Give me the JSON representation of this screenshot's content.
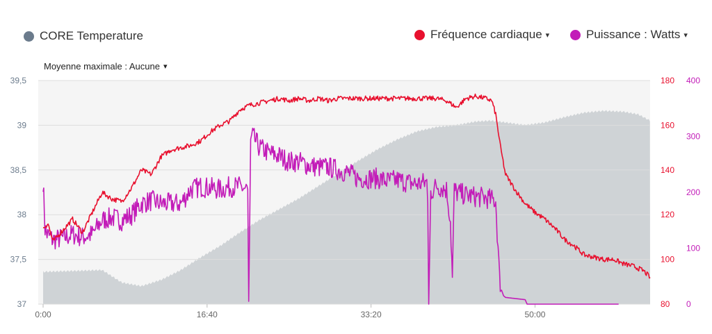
{
  "legend": {
    "core": {
      "label": "CORE Temperature",
      "color": "#6b7b8c"
    },
    "heart_rate": {
      "label": "Fréquence cardiaque",
      "color": "#e8102e"
    },
    "power": {
      "label": "Puissance : Watts",
      "color": "#c21cb8"
    },
    "caret": "▾"
  },
  "moving_average": {
    "label": "Moyenne maximale : Aucune"
  },
  "colors": {
    "core_fill": "#cfd3d6",
    "plot_bg": "#f5f5f5",
    "grid": "#dddddd",
    "left_axis_text": "#6b7b8c",
    "hr_axis_text": "#e8102e",
    "power_axis_text": "#c21cb8"
  },
  "chart_data": {
    "type": "line",
    "x_unit": "minutes",
    "x_range": [
      0,
      61.7
    ],
    "x_ticks": [
      {
        "value": 0,
        "label": "0:00"
      },
      {
        "value": 16.667,
        "label": "16:40"
      },
      {
        "value": 33.333,
        "label": "33:20"
      },
      {
        "value": 50,
        "label": "50:00"
      }
    ],
    "axes": {
      "temperature": {
        "range": [
          37,
          39.5
        ],
        "ticks": [
          "37",
          "37,5",
          "38",
          "38,5",
          "39",
          "39,5"
        ]
      },
      "heart_rate": {
        "range": [
          80,
          180
        ],
        "ticks": [
          "80",
          "100",
          "120",
          "140",
          "160",
          "180"
        ]
      },
      "power": {
        "range": [
          0,
          400
        ],
        "ticks": [
          "0",
          "100",
          "200",
          "300",
          "400"
        ]
      }
    },
    "series": [
      {
        "name": "CORE Temperature",
        "axis": "temperature",
        "style": "area",
        "x": [
          0,
          3,
          6,
          8,
          10,
          12,
          14,
          16,
          18,
          20,
          22,
          24,
          26,
          28,
          30,
          32,
          34,
          36,
          38,
          40,
          42,
          44,
          45.5,
          47,
          49,
          51,
          53,
          55,
          57,
          59,
          60.5,
          61.7
        ],
        "y": [
          37.36,
          37.37,
          37.38,
          37.24,
          37.2,
          37.27,
          37.38,
          37.52,
          37.65,
          37.8,
          37.94,
          38.06,
          38.18,
          38.32,
          38.46,
          38.6,
          38.73,
          38.84,
          38.93,
          38.98,
          39.0,
          39.04,
          39.05,
          39.03,
          39.0,
          39.03,
          39.09,
          39.14,
          39.16,
          39.15,
          39.12,
          39.05
        ]
      },
      {
        "name": "Fréquence cardiaque",
        "axis": "heart_rate",
        "x": [
          0,
          0.5,
          1,
          2,
          3,
          4,
          5,
          6,
          7,
          8,
          9,
          10,
          11,
          12,
          13,
          14,
          15,
          16,
          17,
          18,
          19,
          20,
          21,
          22,
          23,
          24,
          25,
          26,
          27,
          28,
          29,
          30,
          31,
          32,
          33,
          34,
          35,
          36,
          37,
          38,
          39,
          40,
          41,
          42,
          43,
          44,
          45,
          45.6,
          46,
          46.5,
          47,
          48,
          49,
          50,
          51,
          52,
          53,
          54,
          55,
          56,
          57,
          58,
          59,
          60,
          61,
          61.7
        ],
        "y": [
          114,
          116,
          108,
          113,
          118,
          112,
          121,
          130,
          127,
          126,
          132,
          140,
          138,
          146,
          149,
          150,
          151,
          153,
          157,
          160,
          162,
          167,
          169,
          170,
          171,
          172,
          171,
          172,
          171,
          172,
          171,
          172,
          172,
          172,
          172,
          172,
          172,
          172,
          172,
          172,
          172,
          172,
          171,
          168,
          172,
          173,
          172,
          171,
          165,
          150,
          138,
          131,
          125,
          121,
          118,
          114,
          109,
          106,
          102,
          101,
          100,
          100,
          98,
          97,
          95,
          92
        ]
      },
      {
        "name": "Puissance : Watts",
        "axis": "power",
        "x": [
          0,
          0.2,
          0.4,
          1,
          2,
          3,
          4,
          5,
          6,
          7,
          8,
          9,
          10,
          11,
          12,
          13,
          14,
          15,
          16,
          17,
          18,
          19,
          20,
          20.8,
          20.9,
          21.1,
          21.3,
          22,
          23,
          24,
          25,
          26,
          27,
          28,
          29,
          30,
          31,
          32,
          33,
          34,
          35,
          36,
          37,
          38,
          39,
          39.1,
          39.2,
          39.4,
          40,
          41,
          41.4,
          41.6,
          41.8,
          42,
          43,
          44,
          45,
          46,
          46.4,
          46.6,
          46.8,
          47,
          48,
          49,
          49.2,
          52,
          54,
          56,
          58.5
        ],
        "y": [
          220,
          135,
          125,
          115,
          118,
          125,
          120,
          125,
          150,
          155,
          150,
          160,
          180,
          185,
          180,
          180,
          180,
          205,
          210,
          208,
          205,
          210,
          210,
          205,
          5,
          290,
          300,
          280,
          270,
          265,
          255,
          255,
          248,
          245,
          245,
          240,
          235,
          225,
          225,
          225,
          220,
          222,
          218,
          215,
          218,
          180,
          0,
          200,
          212,
          205,
          150,
          45,
          205,
          200,
          195,
          192,
          190,
          185,
          45,
          25,
          15,
          12,
          10,
          8,
          0,
          0,
          0,
          0,
          0
        ]
      }
    ]
  }
}
